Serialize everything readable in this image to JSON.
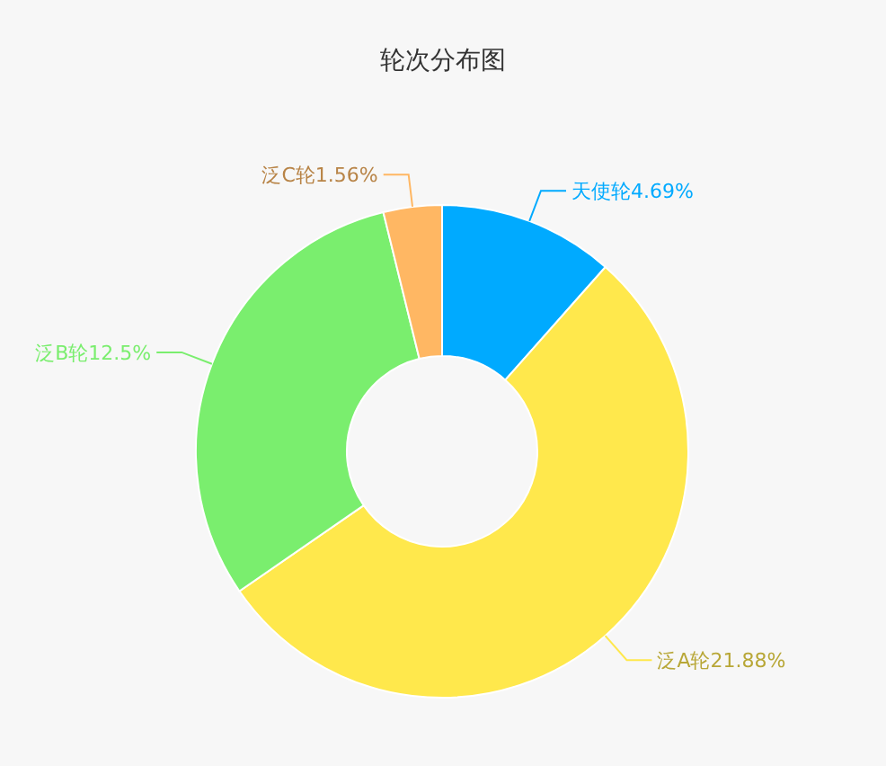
{
  "chart_data": {
    "type": "donut",
    "title": "轮次分布图",
    "categories": [
      "天使轮",
      "泛A轮",
      "泛B轮",
      "泛C轮"
    ],
    "values": [
      4.69,
      21.88,
      12.5,
      1.56
    ],
    "value_labels": [
      "4.69%",
      "21.88%",
      "12.5%",
      "1.56%"
    ],
    "colors": [
      "#00aaff",
      "#ffe84c",
      "#7aee6e",
      "#ffb763"
    ]
  }
}
